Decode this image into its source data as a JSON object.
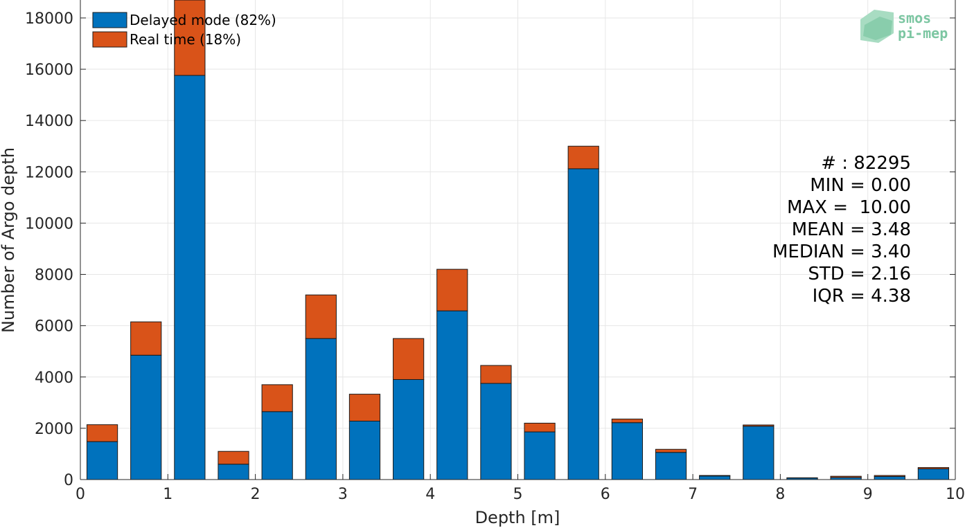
{
  "chart_data": {
    "type": "bar",
    "stacked": true,
    "xlabel": "Depth [m]",
    "ylabel": "Number of Argo depth",
    "xlim": [
      0,
      10
    ],
    "ylim": [
      0,
      18700
    ],
    "x_ticks": [
      "0",
      "1",
      "2",
      "3",
      "4",
      "5",
      "6",
      "7",
      "8",
      "9",
      "10"
    ],
    "y_ticks": [
      "0",
      "2000",
      "4000",
      "6000",
      "8000",
      "10000",
      "12000",
      "14000",
      "16000",
      "18000"
    ],
    "grid": true,
    "legend_position": "top-left",
    "bin_width": 0.5,
    "bin_centers": [
      0.25,
      0.75,
      1.25,
      1.75,
      2.25,
      2.75,
      3.25,
      3.75,
      4.25,
      4.75,
      5.25,
      5.75,
      6.25,
      6.75,
      7.25,
      7.75,
      8.25,
      8.75,
      9.25,
      9.75
    ],
    "series": [
      {
        "name": "Delayed mode (82%)",
        "color": "#0072bd",
        "values": [
          1480,
          4850,
          15760,
          600,
          2650,
          5500,
          2280,
          3900,
          6580,
          3750,
          1860,
          12120,
          2220,
          1060,
          140,
          2080,
          60,
          80,
          120,
          420
        ]
      },
      {
        "name": "Real time (18%)",
        "color": "#d95319",
        "values": [
          660,
          1300,
          2940,
          500,
          1050,
          1700,
          1050,
          1600,
          1620,
          700,
          340,
          880,
          140,
          120,
          20,
          50,
          10,
          50,
          40,
          50
        ]
      }
    ],
    "annotations": [
      "# : 82295",
      "MIN = 0.00",
      "MAX =  10.00",
      "MEAN = 3.48",
      "MEDIAN = 3.40",
      "STD = 2.16",
      "IQR = 4.38"
    ]
  },
  "logo": {
    "line1": "smos",
    "line2": "pi-mep",
    "color": "#7cc6a2"
  }
}
